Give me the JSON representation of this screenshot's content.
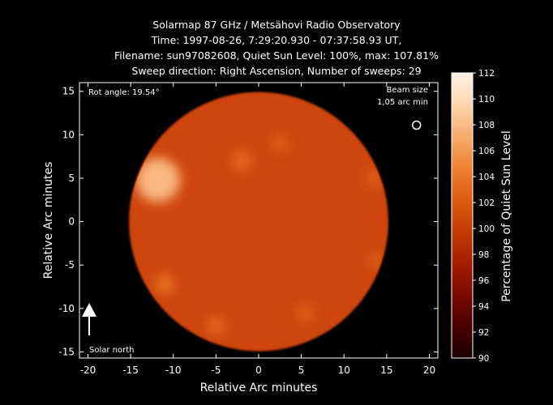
{
  "chart_data": {
    "type": "heatmap",
    "title_lines": [
      "Solarmap 87 GHz / Metsähovi Radio Observatory",
      "Time: 1997-08-26,  7:29:20.930 - 07:37:58.93 UT,",
      "Filename: sun97082608, Quiet Sun Level: 100%, max: 107.81%",
      "Sweep direction: Right Ascension, Number of sweeps: 29"
    ],
    "xlabel": "Relative Arc minutes",
    "ylabel": "Relative Arc minutes",
    "xlim": [
      -21,
      21
    ],
    "ylim": [
      -15.7,
      16
    ],
    "xticks": [
      -20,
      -15,
      -10,
      -5,
      0,
      5,
      10,
      15,
      20
    ],
    "yticks": [
      -15,
      -10,
      -5,
      0,
      5,
      10,
      15
    ],
    "colorbar": {
      "label": "Percentage of Quiet Sun Level",
      "min": 90,
      "max": 112,
      "ticks": [
        90,
        92,
        94,
        96,
        98,
        100,
        102,
        104,
        106,
        108,
        110,
        112
      ],
      "colors": [
        "#1a0000",
        "#4a0000",
        "#7a0a00",
        "#a51e00",
        "#c73a05",
        "#de5c10",
        "#ee8230",
        "#f7ac6c",
        "#fdd6b0",
        "#fff2e4"
      ]
    },
    "sun_disk": {
      "center": [
        0,
        0
      ],
      "radius": 15.2,
      "typical_level": 100.5
    },
    "hot_spots": [
      {
        "x": -11.8,
        "y": 4.8,
        "radius": 2.6,
        "level": 107.8
      },
      {
        "x": -11.0,
        "y": -7.2,
        "radius": 1.2,
        "level": 103.5
      },
      {
        "x": -2.0,
        "y": 7.0,
        "radius": 1.2,
        "level": 103
      },
      {
        "x": 2.5,
        "y": 9.0,
        "radius": 1.0,
        "level": 102.5
      },
      {
        "x": -5.0,
        "y": -12.0,
        "radius": 1.1,
        "level": 103
      },
      {
        "x": 5.5,
        "y": -10.5,
        "radius": 1.0,
        "level": 102.5
      },
      {
        "x": 13.5,
        "y": 5.0,
        "radius": 1.0,
        "level": 102.5
      },
      {
        "x": 13.8,
        "y": -4.5,
        "radius": 0.9,
        "level": 102.5
      }
    ],
    "annotations": {
      "rot_angle": "Rot angle: 19.54°",
      "beam_size_line1": "Beam size",
      "beam_size_line2": "1,05 arc min",
      "beam_position": [
        18.5,
        11.1
      ],
      "solar_north": "Solar north"
    }
  }
}
